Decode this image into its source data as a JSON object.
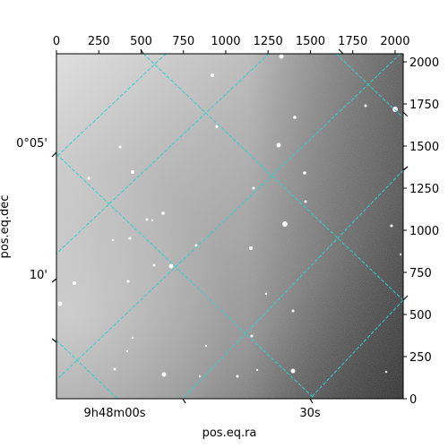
{
  "chart_data": {
    "type": "image",
    "xlabel": "pos.eq.ra",
    "ylabel": "pos.eq.dec",
    "pixel_x": {
      "range": [
        0,
        2048
      ],
      "ticks": [
        0,
        250,
        500,
        750,
        1000,
        1250,
        1500,
        1750,
        2000
      ]
    },
    "pixel_y": {
      "range": [
        0,
        2048
      ],
      "ticks": [
        0,
        250,
        500,
        750,
        1000,
        1250,
        1500,
        1750,
        2000
      ]
    },
    "ra_ticks": [
      "9h48m00s",
      "30s"
    ],
    "dec_ticks": [
      "0°05'",
      "10'"
    ],
    "grid": true,
    "grid_color": "#2fd0d0",
    "colormap": "gray"
  }
}
